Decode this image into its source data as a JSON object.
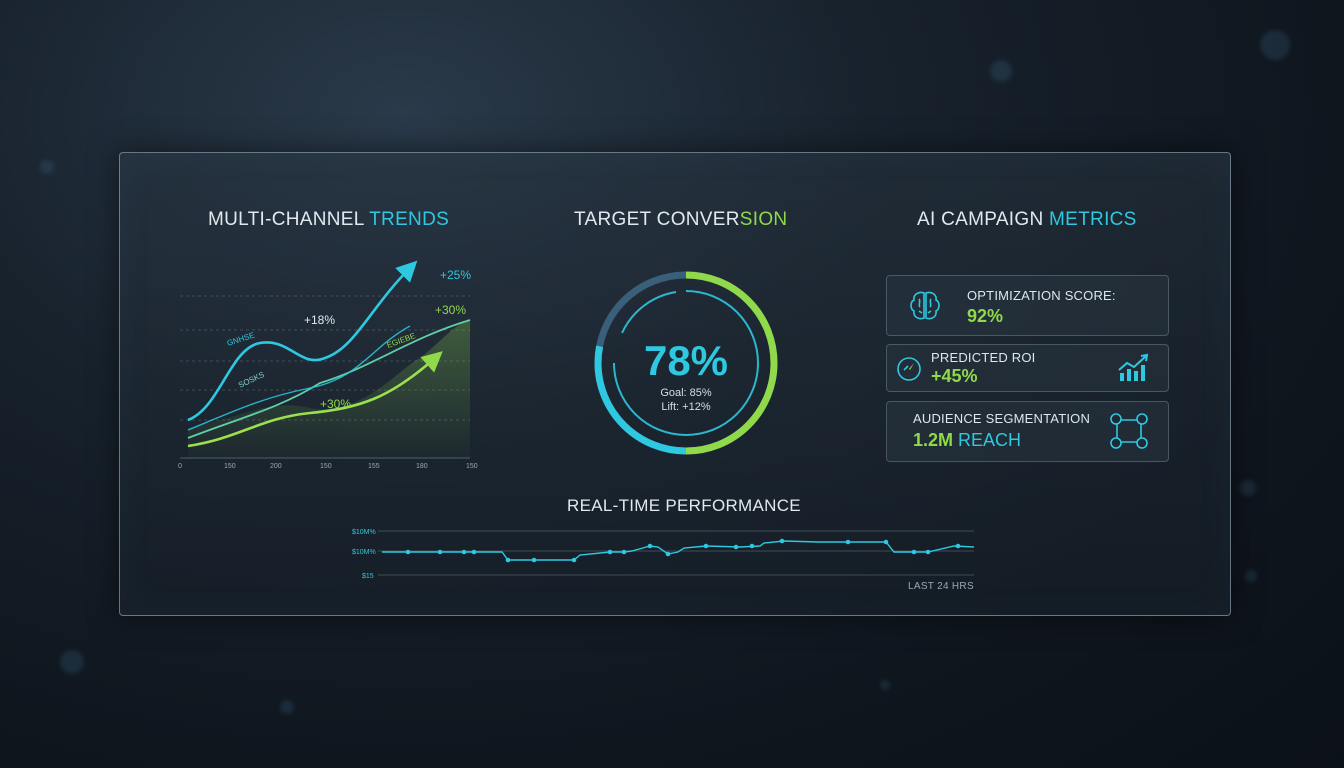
{
  "trends": {
    "title_part1": "MULTI-CHANNEL ",
    "title_part2": "TRENDS",
    "labels": {
      "pct_25": "+25%",
      "pct_30_top": "+30%",
      "pct_18": "+18%",
      "pct_30_bottom": "+30%",
      "series_a": "GNHSE",
      "series_b": "SOSKS",
      "series_c": "EGIEBE"
    },
    "x_ticks": [
      "0",
      "150",
      "200",
      "150",
      "155",
      "180",
      "150"
    ],
    "colors": {
      "cyan": "#2ec8e0",
      "green": "#8fd94a"
    }
  },
  "conversion": {
    "title_part1": "TARGET CONVER",
    "title_part2": "SION",
    "value": "78%",
    "goal": "Goal: 85%",
    "lift": "Lift: +12%",
    "progress": 0.78
  },
  "metrics": {
    "title_part1": "AI CAMPAIGN ",
    "title_part2": "METRICS",
    "cards": [
      {
        "label": "OPTIMIZATION SCORE:",
        "value": "92%",
        "icon": "brain-icon"
      },
      {
        "label": "PREDICTED ROI",
        "value": "+45%",
        "icon": "gauge-icon",
        "icon_right": "bar-chart-trend-icon"
      },
      {
        "label": "AUDIENCE SEGMENTATION",
        "value_part1": "1.2M",
        "value_part2": " REACH",
        "icon": "network-nodes-icon"
      }
    ]
  },
  "realtime": {
    "title": "REAL-TIME PERFORMANCE",
    "y_ticks": [
      "$10M%",
      "$10M%",
      "$15"
    ],
    "footer": "LAST 24 HRS",
    "line_color": "#2ec8e0"
  }
}
